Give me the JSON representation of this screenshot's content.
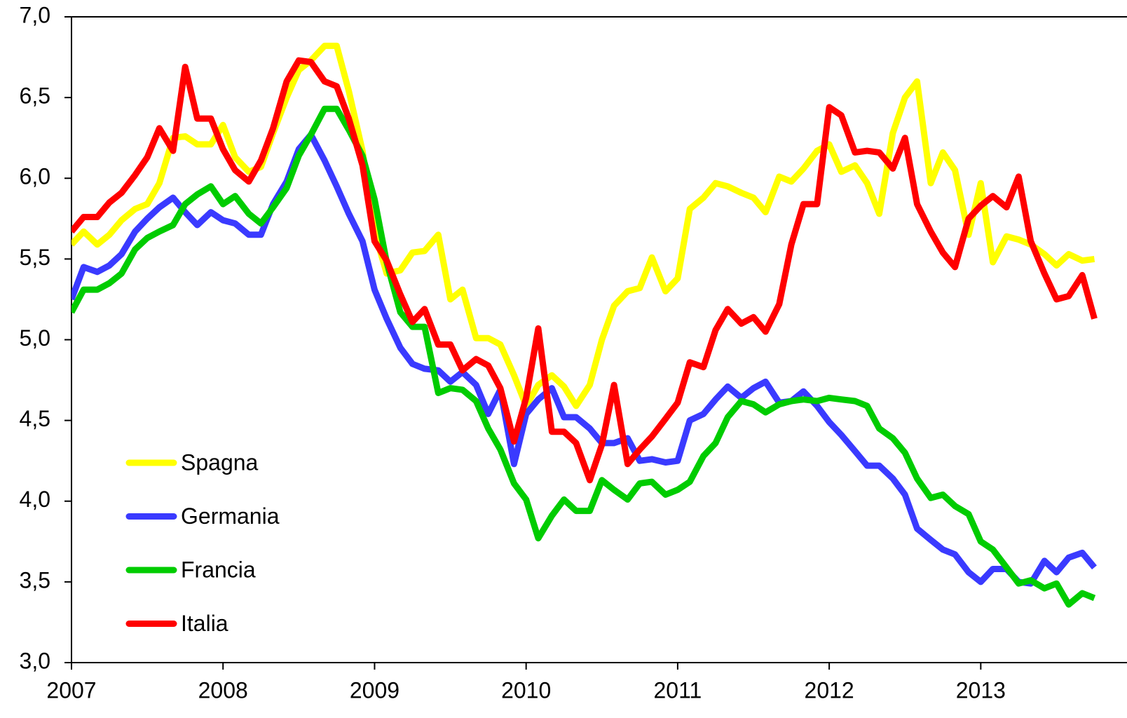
{
  "chart_data": {
    "type": "line",
    "x": [
      2007,
      2007.08,
      2007.17,
      2007.25,
      2007.33,
      2007.42,
      2007.5,
      2007.58,
      2007.67,
      2007.75,
      2007.83,
      2007.92,
      2008,
      2008.08,
      2008.17,
      2008.25,
      2008.33,
      2008.42,
      2008.5,
      2008.58,
      2008.67,
      2008.75,
      2008.83,
      2008.92,
      2009,
      2009.08,
      2009.17,
      2009.25,
      2009.33,
      2009.42,
      2009.5,
      2009.58,
      2009.67,
      2009.75,
      2009.83,
      2009.92,
      2010,
      2010.08,
      2010.17,
      2010.25,
      2010.33,
      2010.42,
      2010.5,
      2010.58,
      2010.67,
      2010.75,
      2010.83,
      2010.92,
      2011,
      2011.08,
      2011.17,
      2011.25,
      2011.33,
      2011.42,
      2011.5,
      2011.58,
      2011.67,
      2011.75,
      2011.83,
      2011.92,
      2012,
      2012.08,
      2012.17,
      2012.25,
      2012.33,
      2012.42,
      2012.5,
      2012.58,
      2012.67,
      2012.75,
      2012.83,
      2012.92,
      2013,
      2013.08,
      2013.17,
      2013.25,
      2013.33,
      2013.42,
      2013.5,
      2013.58,
      2013.67,
      2013.75
    ],
    "series": [
      {
        "name": "Spagna",
        "color": "#ffff00",
        "values": [
          5.59,
          5.67,
          5.59,
          5.65,
          5.74,
          5.81,
          5.84,
          5.97,
          6.25,
          6.26,
          6.21,
          6.21,
          6.33,
          6.13,
          6.04,
          6.07,
          6.28,
          6.5,
          6.67,
          6.73,
          6.82,
          6.82,
          6.54,
          6.17,
          5.67,
          5.41,
          5.43,
          5.54,
          5.55,
          5.65,
          5.25,
          5.31,
          5.01,
          5.01,
          4.97,
          4.78,
          4.59,
          4.72,
          4.78,
          4.71,
          4.59,
          4.72,
          5.0,
          5.21,
          5.3,
          5.32,
          5.51,
          5.3,
          5.38,
          5.81,
          5.88,
          5.97,
          5.95,
          5.91,
          5.88,
          5.79,
          6.01,
          5.98,
          6.06,
          6.17,
          6.21,
          6.04,
          6.08,
          5.97,
          5.78,
          6.28,
          6.5,
          6.6,
          5.97,
          6.16,
          6.05,
          5.65,
          5.97,
          5.48,
          5.64,
          5.62,
          5.59,
          5.53,
          5.46,
          5.53,
          5.49,
          5.5
        ]
      },
      {
        "name": "Germania",
        "color": "#3a3aff",
        "values": [
          5.25,
          5.45,
          5.42,
          5.46,
          5.53,
          5.67,
          5.75,
          5.82,
          5.88,
          5.79,
          5.71,
          5.79,
          5.74,
          5.72,
          5.65,
          5.65,
          5.84,
          5.98,
          6.18,
          6.27,
          6.11,
          5.95,
          5.78,
          5.61,
          5.31,
          5.13,
          4.95,
          4.85,
          4.82,
          4.81,
          4.74,
          4.8,
          4.72,
          4.54,
          4.69,
          4.23,
          4.54,
          4.63,
          4.7,
          4.52,
          4.52,
          4.45,
          4.36,
          4.36,
          4.39,
          4.25,
          4.26,
          4.24,
          4.25,
          4.5,
          4.54,
          4.63,
          4.71,
          4.64,
          4.7,
          4.74,
          4.61,
          4.62,
          4.68,
          4.59,
          4.49,
          4.41,
          4.31,
          4.22,
          4.22,
          4.14,
          4.04,
          3.83,
          3.76,
          3.7,
          3.67,
          3.56,
          3.5,
          3.58,
          3.58,
          3.5,
          3.49,
          3.63,
          3.56,
          3.65,
          3.68,
          3.59
        ]
      },
      {
        "name": "Francia",
        "color": "#00cc00",
        "values": [
          5.17,
          5.31,
          5.31,
          5.35,
          5.41,
          5.56,
          5.63,
          5.67,
          5.71,
          5.84,
          5.9,
          5.95,
          5.84,
          5.89,
          5.78,
          5.72,
          5.82,
          5.94,
          6.14,
          6.27,
          6.43,
          6.43,
          6.3,
          6.14,
          5.87,
          5.48,
          5.17,
          5.08,
          5.08,
          4.67,
          4.7,
          4.69,
          4.62,
          4.45,
          4.32,
          4.11,
          4.01,
          3.77,
          3.91,
          4.01,
          3.94,
          3.94,
          4.13,
          4.07,
          4.01,
          4.11,
          4.12,
          4.04,
          4.07,
          4.12,
          4.28,
          4.36,
          4.52,
          4.62,
          4.6,
          4.55,
          4.6,
          4.62,
          4.63,
          4.62,
          4.64,
          4.63,
          4.62,
          4.59,
          4.45,
          4.39,
          4.3,
          4.14,
          4.02,
          4.04,
          3.97,
          3.92,
          3.75,
          3.7,
          3.59,
          3.49,
          3.51,
          3.46,
          3.49,
          3.36,
          3.43,
          3.4
        ]
      },
      {
        "name": "Italia",
        "color": "#ff0000",
        "values": [
          5.67,
          5.76,
          5.76,
          5.85,
          5.91,
          6.02,
          6.13,
          6.31,
          6.17,
          6.69,
          6.37,
          6.37,
          6.18,
          6.05,
          5.98,
          6.11,
          6.31,
          6.6,
          6.73,
          6.72,
          6.6,
          6.57,
          6.37,
          6.08,
          5.61,
          5.49,
          5.28,
          5.11,
          5.19,
          4.97,
          4.97,
          4.81,
          4.88,
          4.84,
          4.7,
          4.37,
          4.64,
          5.07,
          4.43,
          4.43,
          4.36,
          4.13,
          4.35,
          4.72,
          4.23,
          4.32,
          4.4,
          4.51,
          4.61,
          4.86,
          4.83,
          5.06,
          5.19,
          5.1,
          5.14,
          5.05,
          5.22,
          5.59,
          5.84,
          5.84,
          6.44,
          6.39,
          6.16,
          6.17,
          6.16,
          6.06,
          6.25,
          5.84,
          5.67,
          5.54,
          5.45,
          5.75,
          5.83,
          5.89,
          5.82,
          6.01,
          5.61,
          5.41,
          5.25,
          5.27,
          5.4,
          5.13
        ]
      }
    ],
    "xlim": [
      2007,
      2013.78
    ],
    "xticks": [
      2007,
      2008,
      2009,
      2010,
      2011,
      2012,
      2013
    ],
    "ylim": [
      3,
      7
    ],
    "yticks": [
      {
        "value": 3,
        "label": "3,0"
      },
      {
        "value": 3.5,
        "label": "3,5"
      },
      {
        "value": 4,
        "label": "4,0"
      },
      {
        "value": 4.5,
        "label": "4,5"
      },
      {
        "value": 5,
        "label": "5,0"
      },
      {
        "value": 5.5,
        "label": "5,5"
      },
      {
        "value": 6,
        "label": "6,0"
      },
      {
        "value": 6.5,
        "label": "6,5"
      },
      {
        "value": 7,
        "label": "7,0"
      }
    ],
    "legend": "lower-left"
  }
}
